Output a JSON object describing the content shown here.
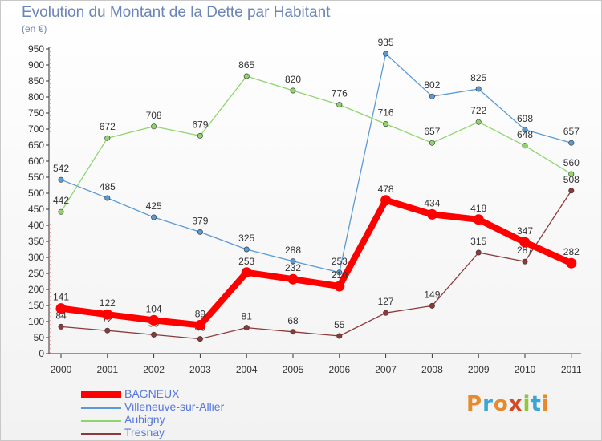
{
  "title": "Evolution du Montant de la Dette par Habitant",
  "subtitle": "(en €)",
  "logo": "Proxiti",
  "chart_data": {
    "type": "line",
    "categories": [
      "2000",
      "2001",
      "2002",
      "2003",
      "2004",
      "2005",
      "2006",
      "2007",
      "2008",
      "2009",
      "2010",
      "2011"
    ],
    "ylim": [
      0,
      950
    ],
    "yticks": [
      0,
      50,
      100,
      150,
      200,
      250,
      300,
      350,
      400,
      450,
      500,
      550,
      600,
      650,
      700,
      750,
      800,
      850,
      900,
      950
    ],
    "grid": false,
    "legend_position": "bottom-left",
    "series": [
      {
        "name": "BAGNEUX",
        "color": "#ff0000",
        "values": [
          141,
          122,
          104,
          89,
          253,
          232,
          210,
          478,
          434,
          418,
          347,
          282
        ]
      },
      {
        "name": "Villeneuve-sur-Allier",
        "color": "#5b9bd5",
        "values": [
          542,
          485,
          425,
          379,
          325,
          288,
          253,
          935,
          802,
          825,
          698,
          657
        ]
      },
      {
        "name": "Aubigny",
        "color": "#8fd46c",
        "values": [
          442,
          672,
          708,
          679,
          865,
          820,
          776,
          716,
          657,
          722,
          648,
          560
        ]
      },
      {
        "name": "Tresnay",
        "color": "#8b3a3a",
        "values": [
          84,
          72,
          59,
          46,
          81,
          68,
          55,
          127,
          149,
          315,
          287,
          508
        ]
      }
    ]
  }
}
